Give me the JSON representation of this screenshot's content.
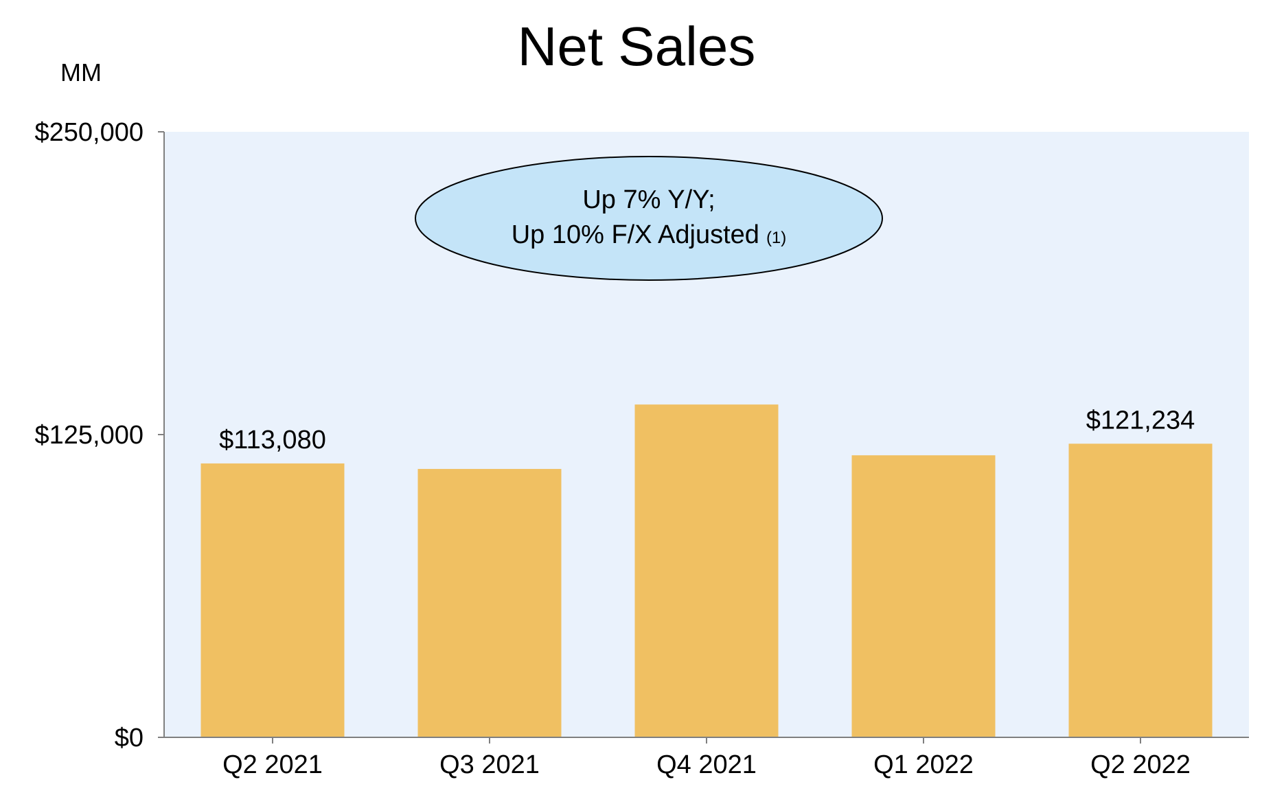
{
  "chart_data": {
    "type": "bar",
    "title": "Net Sales",
    "unit_label": "MM",
    "categories": [
      "Q2 2021",
      "Q3 2021",
      "Q4 2021",
      "Q1 2022",
      "Q2 2022"
    ],
    "values": [
      113080,
      110812,
      137412,
      116444,
      121234
    ],
    "data_labels": [
      "$113,080",
      "",
      "",
      "",
      "$121,234"
    ],
    "ylim": [
      0,
      250000
    ],
    "y_ticks": [
      {
        "value": 0,
        "label": "$0"
      },
      {
        "value": 125000,
        "label": "$125,000"
      },
      {
        "value": 250000,
        "label": "$250,000"
      }
    ],
    "annotation": {
      "line1": "Up 7% Y/Y;",
      "line2": "Up 10% F/X Adjusted",
      "footnote": "(1)"
    },
    "grid": false,
    "legend": "none",
    "colors": {
      "bar": "#F0C062",
      "plot_background": "#EAF2FC",
      "annotation_fill": "#C4E4F8",
      "axis": "#7F7F7F"
    }
  }
}
